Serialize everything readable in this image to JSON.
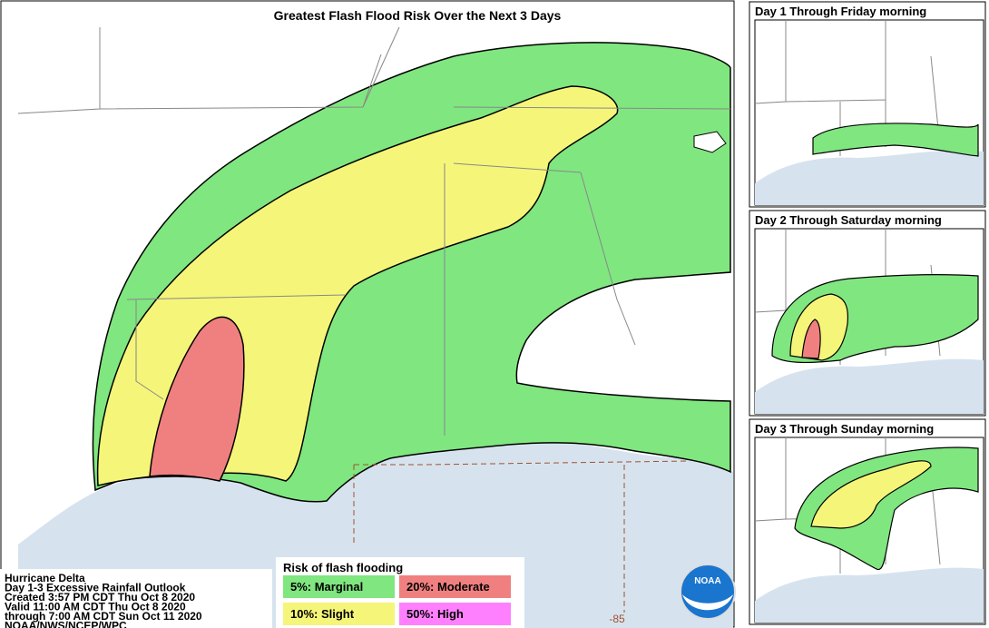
{
  "title": "Greatest Flash Flood Risk Over the Next 3 Days",
  "info": {
    "lines": [
      "Hurricane Delta",
      "Day 1-3 Excessive Rainfall Outlook",
      "Created 3:57 PM CDT Thu Oct 8 2020",
      "Valid 11:00 AM CDT Thu Oct 8 2020",
      "through 7:00 AM CDT Sun Oct 11 2020",
      "NOAA/NWS/NCEP/WPC"
    ]
  },
  "legend": {
    "title": "Risk of flash flooding",
    "items": [
      {
        "label": "5%: Marginal",
        "color": "#80e680"
      },
      {
        "label": "20%: Moderate",
        "color": "#f08080"
      },
      {
        "label": "10%: Slight",
        "color": "#f5f57a"
      },
      {
        "label": "50%: High",
        "color": "#ff80ff"
      }
    ]
  },
  "longitude_label": "-85",
  "logo": "NOAA",
  "panels": [
    {
      "title": "Day 1 Through Friday morning"
    },
    {
      "title": "Day 2 Through Saturday morning"
    },
    {
      "title": "Day 3 Through Sunday morning"
    }
  ]
}
